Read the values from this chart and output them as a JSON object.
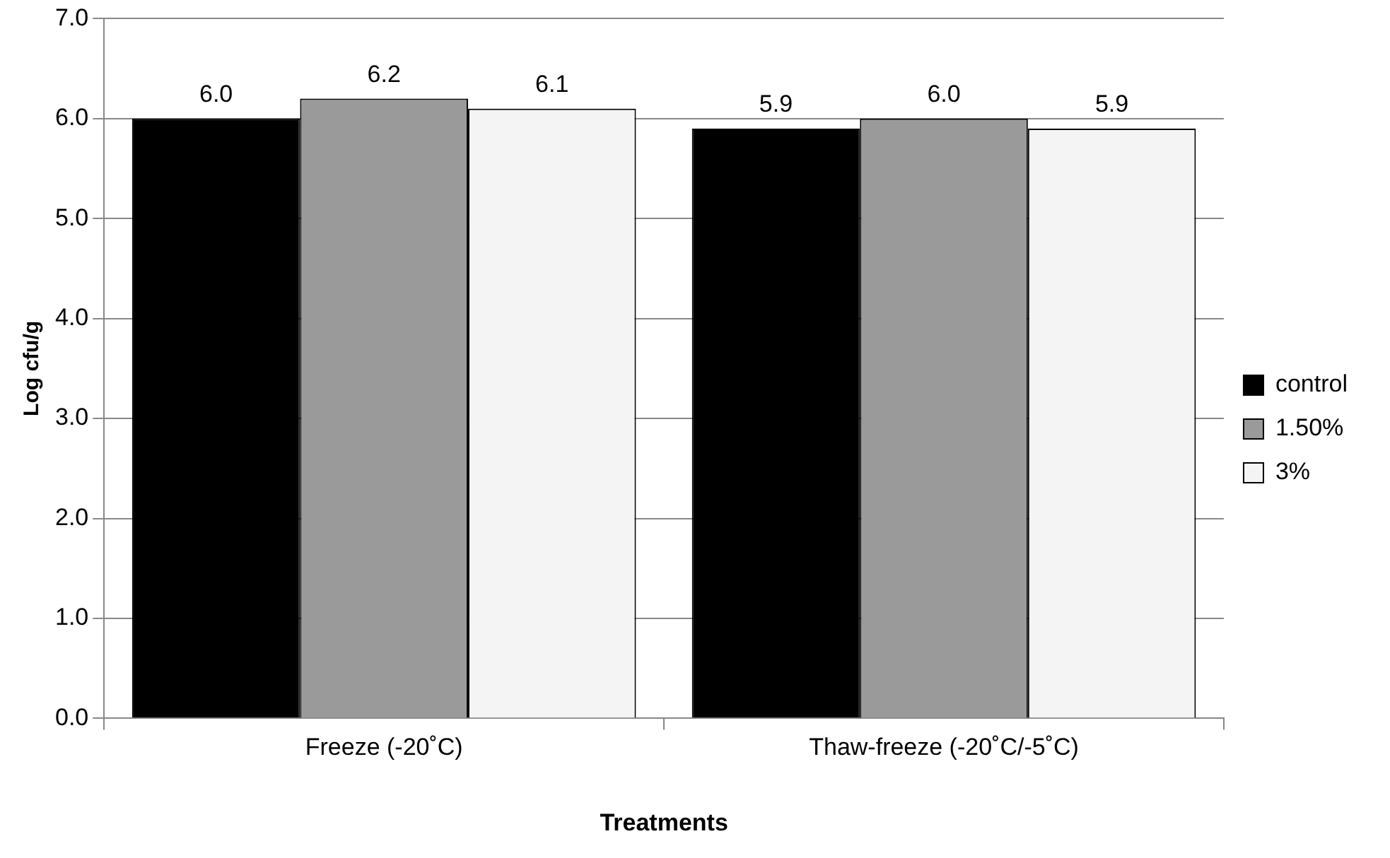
{
  "chart_data": {
    "type": "bar",
    "xlabel": "Treatments",
    "ylabel": "Log cfu/g",
    "categories": [
      "Freeze (-20˚C)",
      "Thaw-freeze (-20˚C/-5˚C)"
    ],
    "series": [
      {
        "name": "control",
        "color": "#000000",
        "values": [
          6.0,
          5.9
        ],
        "value_labels": [
          "6.0",
          "5.9"
        ]
      },
      {
        "name": "1.50%",
        "color": "#9a9a9a",
        "values": [
          6.2,
          6.0
        ],
        "value_labels": [
          "6.2",
          "6.0"
        ]
      },
      {
        "name": "3%",
        "color": "#f4f4f4",
        "values": [
          6.1,
          5.9
        ],
        "value_labels": [
          "6.1",
          "5.9"
        ]
      }
    ],
    "ylim": [
      0,
      7
    ],
    "yticks": [
      {
        "value": 0,
        "label": "0.0"
      },
      {
        "value": 1,
        "label": "1.0"
      },
      {
        "value": 2,
        "label": "2.0"
      },
      {
        "value": 3,
        "label": "3.0"
      },
      {
        "value": 4,
        "label": "4.0"
      },
      {
        "value": 5,
        "label": "5.0"
      },
      {
        "value": 6,
        "label": "6.0"
      },
      {
        "value": 7,
        "label": "7.0"
      }
    ],
    "grid": "y",
    "legend": "right"
  }
}
